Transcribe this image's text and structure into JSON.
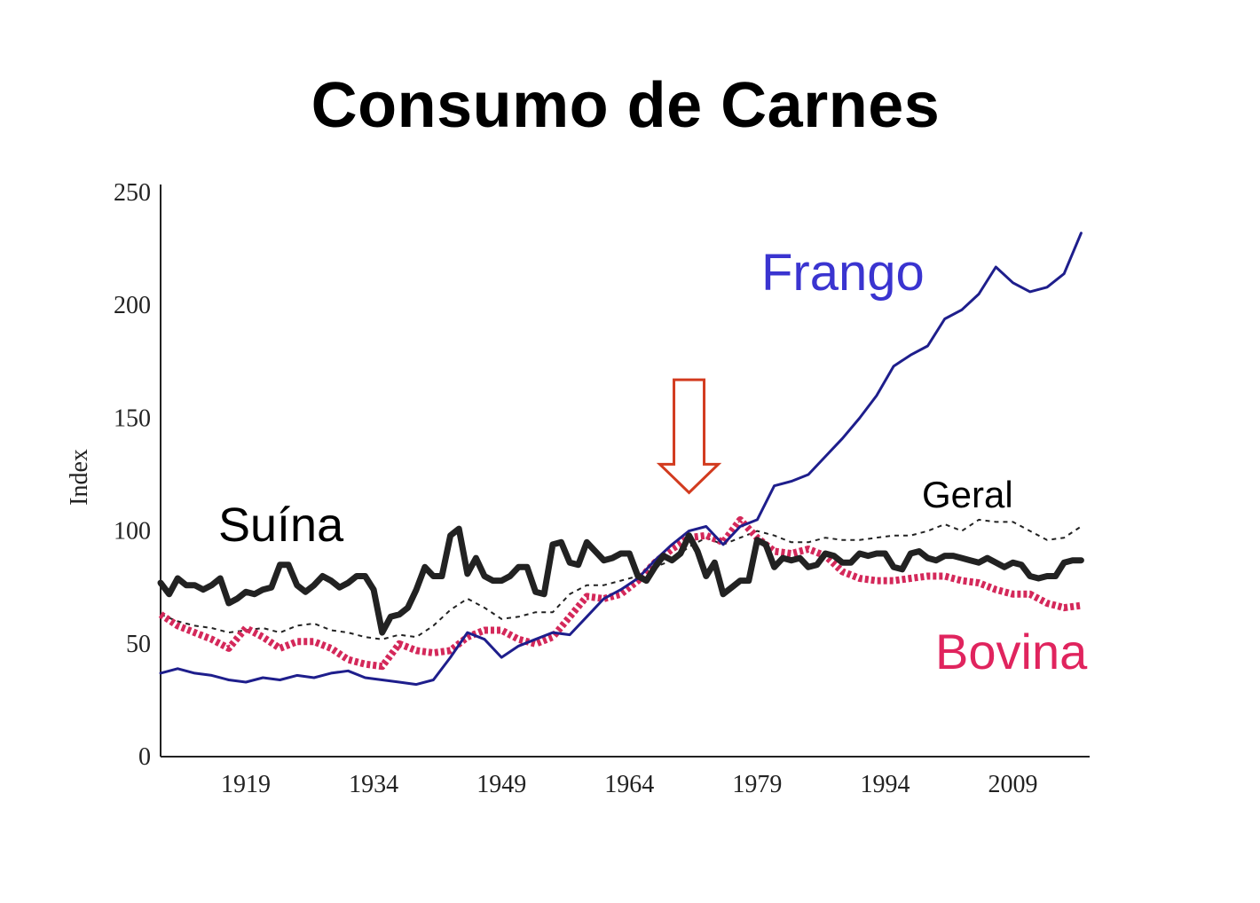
{
  "colors": {
    "frango": "#1e1e8c",
    "frango_label": "#3a34d0",
    "suina": "#222222",
    "geral": "#222222",
    "bovina": "#d4285a",
    "bovina_label": "#e0245e",
    "arrow": "#d23b1f"
  },
  "chart_data": {
    "type": "line",
    "title": "Consumo de Carnes",
    "xlabel": "",
    "ylabel": "Index",
    "xlim": [
      1909,
      2018
    ],
    "ylim": [
      0,
      250
    ],
    "xticks": [
      1919,
      1934,
      1949,
      1964,
      1979,
      1994,
      2009
    ],
    "yticks": [
      0,
      50,
      100,
      150,
      200,
      250
    ],
    "grid": false,
    "legend": "inline labels",
    "annotation": {
      "type": "arrow-down",
      "x": 1971,
      "y_top": 167,
      "y_bottom": 117
    },
    "series": [
      {
        "name": "Frango",
        "style": "thin-solid",
        "x": [
          1909,
          1911,
          1913,
          1915,
          1917,
          1919,
          1921,
          1923,
          1925,
          1927,
          1929,
          1931,
          1933,
          1935,
          1937,
          1939,
          1941,
          1943,
          1945,
          1947,
          1949,
          1951,
          1953,
          1955,
          1957,
          1959,
          1961,
          1963,
          1965,
          1967,
          1969,
          1971,
          1973,
          1975,
          1977,
          1979,
          1981,
          1983,
          1985,
          1987,
          1989,
          1991,
          1993,
          1995,
          1997,
          1999,
          2001,
          2003,
          2005,
          2007,
          2009,
          2011,
          2013,
          2015,
          2017
        ],
        "y": [
          37,
          39,
          37,
          36,
          34,
          33,
          35,
          34,
          36,
          35,
          37,
          38,
          35,
          34,
          33,
          32,
          34,
          44,
          55,
          52,
          44,
          49,
          52,
          55,
          54,
          62,
          70,
          74,
          79,
          87,
          94,
          100,
          102,
          94,
          102,
          105,
          120,
          122,
          125,
          133,
          141,
          150,
          160,
          173,
          178,
          182,
          194,
          198,
          205,
          217,
          210,
          206,
          208,
          214,
          232
        ]
      },
      {
        "name": "Suína",
        "style": "thick-solid",
        "x": [
          1909,
          1910,
          1911,
          1912,
          1913,
          1914,
          1915,
          1916,
          1917,
          1918,
          1919,
          1920,
          1921,
          1922,
          1923,
          1924,
          1925,
          1926,
          1927,
          1928,
          1929,
          1930,
          1931,
          1932,
          1933,
          1934,
          1935,
          1936,
          1937,
          1938,
          1939,
          1940,
          1941,
          1942,
          1943,
          1944,
          1945,
          1946,
          1947,
          1948,
          1949,
          1950,
          1951,
          1952,
          1953,
          1954,
          1955,
          1956,
          1957,
          1958,
          1959,
          1960,
          1961,
          1962,
          1963,
          1964,
          1965,
          1966,
          1967,
          1968,
          1969,
          1970,
          1971,
          1972,
          1973,
          1974,
          1975,
          1976,
          1977,
          1978,
          1979,
          1980,
          1981,
          1982,
          1983,
          1984,
          1985,
          1986,
          1987,
          1988,
          1989,
          1990,
          1991,
          1992,
          1993,
          1994,
          1995,
          1996,
          1997,
          1998,
          1999,
          2000,
          2001,
          2002,
          2003,
          2004,
          2005,
          2006,
          2007,
          2008,
          2009,
          2010,
          2011,
          2012,
          2013,
          2014,
          2015,
          2016,
          2017
        ],
        "y": [
          77,
          72,
          79,
          76,
          76,
          74,
          76,
          79,
          68,
          70,
          73,
          72,
          74,
          75,
          85,
          85,
          76,
          73,
          76,
          80,
          78,
          75,
          77,
          80,
          80,
          74,
          55,
          62,
          63,
          66,
          74,
          84,
          80,
          80,
          98,
          101,
          81,
          88,
          80,
          78,
          78,
          80,
          84,
          84,
          73,
          72,
          94,
          95,
          86,
          85,
          95,
          91,
          87,
          88,
          90,
          90,
          80,
          78,
          84,
          89,
          87,
          90,
          98,
          91,
          80,
          86,
          72,
          75,
          78,
          78,
          96,
          94,
          84,
          88,
          87,
          88,
          84,
          85,
          90,
          89,
          86,
          86,
          90,
          89,
          90,
          90,
          84,
          83,
          90,
          91,
          88,
          87,
          89,
          89,
          88,
          87,
          86,
          88,
          86,
          84,
          86,
          85,
          80,
          79,
          80,
          80,
          86,
          87,
          87
        ]
      },
      {
        "name": "Geral",
        "style": "thin-dashed",
        "x": [
          1909,
          1911,
          1913,
          1915,
          1917,
          1919,
          1921,
          1923,
          1925,
          1927,
          1929,
          1931,
          1933,
          1935,
          1937,
          1939,
          1941,
          1943,
          1945,
          1947,
          1949,
          1951,
          1953,
          1955,
          1957,
          1959,
          1961,
          1963,
          1965,
          1967,
          1969,
          1971,
          1973,
          1975,
          1977,
          1979,
          1981,
          1983,
          1985,
          1987,
          1989,
          1991,
          1993,
          1995,
          1997,
          1999,
          2001,
          2003,
          2005,
          2007,
          2009,
          2011,
          2013,
          2015,
          2017
        ],
        "y": [
          63,
          60,
          58,
          57,
          55,
          56,
          57,
          55,
          58,
          59,
          56,
          55,
          53,
          52,
          54,
          53,
          58,
          65,
          70,
          66,
          61,
          62,
          64,
          64,
          72,
          76,
          76,
          78,
          80,
          84,
          87,
          93,
          97,
          94,
          97,
          100,
          98,
          95,
          95,
          97,
          96,
          96,
          97,
          98,
          98,
          100,
          103,
          100,
          105,
          104,
          104,
          100,
          96,
          97,
          102
        ]
      },
      {
        "name": "Bovina",
        "style": "thick-dotted",
        "x": [
          1909,
          1911,
          1913,
          1915,
          1917,
          1919,
          1921,
          1923,
          1925,
          1927,
          1929,
          1931,
          1933,
          1935,
          1937,
          1939,
          1941,
          1943,
          1945,
          1947,
          1949,
          1951,
          1953,
          1955,
          1957,
          1959,
          1961,
          1963,
          1965,
          1967,
          1969,
          1971,
          1973,
          1975,
          1977,
          1979,
          1981,
          1983,
          1985,
          1987,
          1989,
          1991,
          1993,
          1995,
          1997,
          1999,
          2001,
          2003,
          2005,
          2007,
          2009,
          2011,
          2013,
          2015,
          2017
        ],
        "y": [
          63,
          58,
          55,
          52,
          48,
          57,
          53,
          48,
          51,
          51,
          48,
          43,
          41,
          40,
          50,
          47,
          46,
          47,
          53,
          56,
          56,
          52,
          50,
          53,
          62,
          71,
          70,
          72,
          78,
          86,
          92,
          97,
          98,
          95,
          105,
          97,
          91,
          90,
          92,
          89,
          82,
          79,
          78,
          78,
          79,
          80,
          80,
          78,
          77,
          74,
          72,
          72,
          68,
          66,
          67
        ]
      }
    ],
    "labels": {
      "frango": "Frango",
      "suina": "Suína",
      "geral": "Geral",
      "bovina": "Bovina"
    }
  }
}
